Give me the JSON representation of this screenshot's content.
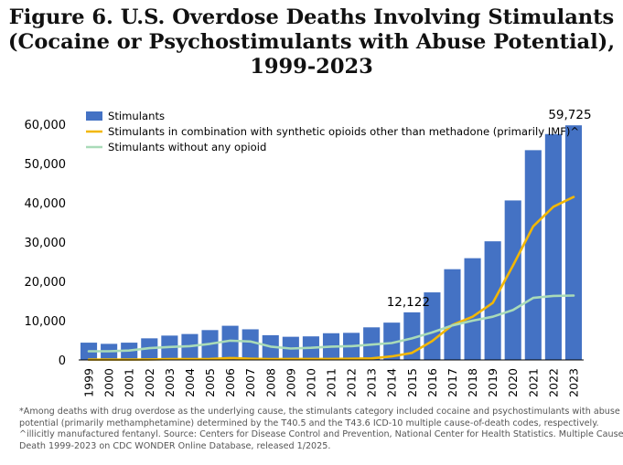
{
  "title_lines": [
    "Figure 6. U.S. Overdose Deaths Involving Stimulants",
    "(Cocaine or Psychostimulants with Abuse Potential),",
    "1999-2023"
  ],
  "colors": {
    "bars": "#4472C4",
    "combo_line": "#F2B705",
    "no_opioid_line": "#A9DBB8",
    "axis": "#000000",
    "footnote": "#555555"
  },
  "chart_data": {
    "type": "bar",
    "title": "Figure 6. U.S. Overdose Deaths Involving Stimulants (Cocaine or Psychostimulants with Abuse Potential), 1999-2023",
    "categories": [
      "1999",
      "2000",
      "2001",
      "2002",
      "2003",
      "2004",
      "2005",
      "2006",
      "2007",
      "2008",
      "2009",
      "2010",
      "2011",
      "2012",
      "2013",
      "2014",
      "2015",
      "2016",
      "2017",
      "2018",
      "2019",
      "2020",
      "2021",
      "2022",
      "2023"
    ],
    "ylim": [
      0,
      60000
    ],
    "yticks": [
      0,
      10000,
      20000,
      30000,
      40000,
      50000,
      60000
    ],
    "ytick_labels": [
      "0",
      "10,000",
      "20,000",
      "30,000",
      "40,000",
      "50,000",
      "60,000"
    ],
    "legend_position": "top-left",
    "series": [
      {
        "name": "Stimulants",
        "kind": "bar",
        "values": [
          4400,
          4100,
          4400,
          5500,
          6200,
          6600,
          7600,
          8700,
          7800,
          6300,
          5900,
          6000,
          6800,
          6900,
          8300,
          9500,
          12122,
          17200,
          23100,
          25900,
          30200,
          40600,
          53400,
          57500,
          59725
        ]
      },
      {
        "name": "Stimulants in combination with synthetic opioids other than methadone (primarily IMF)^",
        "kind": "line",
        "values": [
          100,
          100,
          100,
          150,
          200,
          200,
          250,
          500,
          300,
          200,
          250,
          250,
          250,
          300,
          400,
          900,
          1800,
          4800,
          8900,
          11000,
          14500,
          24000,
          34000,
          39000,
          41500
        ]
      },
      {
        "name": "Stimulants without any opioid",
        "kind": "line",
        "values": [
          2200,
          2200,
          2400,
          3000,
          3300,
          3500,
          4100,
          4900,
          4700,
          3400,
          2900,
          3100,
          3400,
          3500,
          3900,
          4300,
          5500,
          7000,
          8800,
          10000,
          11000,
          12700,
          15800,
          16300,
          16400
        ]
      }
    ],
    "annotations": [
      {
        "category": "2015",
        "text": "12,122"
      },
      {
        "category": "2023",
        "text": "59,725"
      }
    ]
  },
  "footnote_lines": [
    "*Among deaths with drug overdose as the underlying cause, the stimulants category included cocaine and psychostimulants with abuse",
    "potential (primarily methamphetamine) determined by the T40.5 and the T43.6 ICD-10 multiple cause-of-death codes, respectively.",
    "^illicitly manufactured fentanyl. Source: Centers for Disease Control and Prevention, National Center for Health Statistics. Multiple Cause of",
    "Death 1999-2023 on CDC WONDER Online Database, released 1/2025."
  ]
}
